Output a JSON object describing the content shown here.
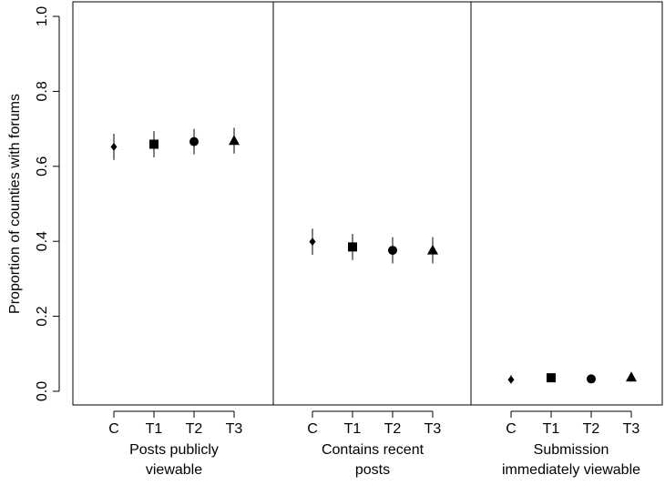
{
  "chart_data": {
    "type": "scatter",
    "ylabel": "Proportion of counties with forums",
    "xlabel": "",
    "ylim": [
      0.0,
      1.0
    ],
    "yticks": [
      "0.0",
      "0.2",
      "0.4",
      "0.6",
      "0.8",
      "1.0"
    ],
    "ytick_values": [
      0.0,
      0.2,
      0.4,
      0.6,
      0.8,
      1.0
    ],
    "grid": false,
    "categories": [
      "C",
      "T1",
      "T2",
      "T3"
    ],
    "markers": [
      "diamond",
      "square",
      "circle",
      "triangle"
    ],
    "panels": [
      {
        "label_lines": [
          "Posts publicly",
          "viewable"
        ],
        "points": [
          {
            "category": "C",
            "value": 0.652,
            "lower": 0.617,
            "upper": 0.687
          },
          {
            "category": "T1",
            "value": 0.659,
            "lower": 0.624,
            "upper": 0.694
          },
          {
            "category": "T2",
            "value": 0.666,
            "lower": 0.632,
            "upper": 0.7
          },
          {
            "category": "T3",
            "value": 0.668,
            "lower": 0.634,
            "upper": 0.703
          }
        ]
      },
      {
        "label_lines": [
          "Contains recent",
          "posts"
        ],
        "points": [
          {
            "category": "C",
            "value": 0.399,
            "lower": 0.364,
            "upper": 0.434
          },
          {
            "category": "T1",
            "value": 0.385,
            "lower": 0.35,
            "upper": 0.42
          },
          {
            "category": "T2",
            "value": 0.376,
            "lower": 0.341,
            "upper": 0.411
          },
          {
            "category": "T3",
            "value": 0.376,
            "lower": 0.341,
            "upper": 0.411
          }
        ]
      },
      {
        "label_lines": [
          "Submission",
          "immediately viewable"
        ],
        "points": [
          {
            "category": "C",
            "value": 0.031,
            "lower": 0.021,
            "upper": 0.043
          },
          {
            "category": "T1",
            "value": 0.036,
            "lower": 0.025,
            "upper": 0.047
          },
          {
            "category": "T2",
            "value": 0.033,
            "lower": 0.022,
            "upper": 0.044
          },
          {
            "category": "T3",
            "value": 0.037,
            "lower": 0.026,
            "upper": 0.048
          }
        ]
      }
    ]
  }
}
